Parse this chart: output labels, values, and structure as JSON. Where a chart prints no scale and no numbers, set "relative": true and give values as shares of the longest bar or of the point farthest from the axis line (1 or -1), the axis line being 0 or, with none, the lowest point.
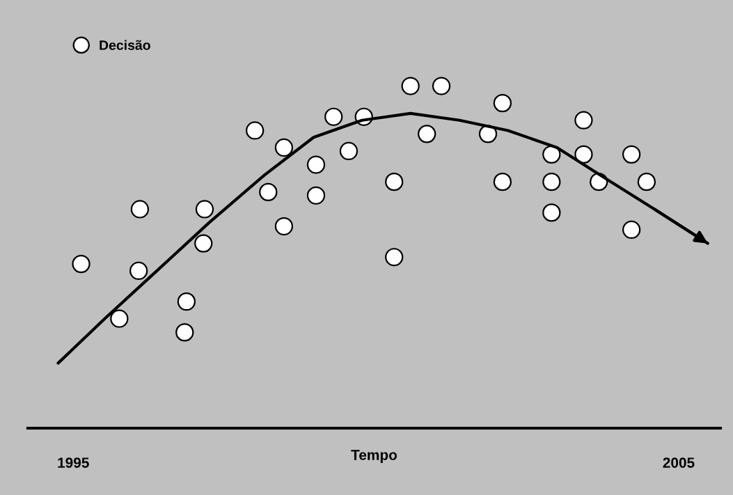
{
  "chart_data": {
    "type": "scatter",
    "relative": true,
    "xlabel": "Tempo",
    "xlim": [
      1994.25,
      2005.69
    ],
    "xticks": [
      1995,
      2005
    ],
    "grid": false,
    "legend": "top left",
    "series": [
      {
        "name": "Decisão",
        "marker": "circle",
        "color": "#ffffff",
        "x": [
          1995.13,
          1995.76,
          1996.1,
          1996.08,
          1996.84,
          1996.87,
          1997.17,
          1997.15,
          1998.0,
          1998.22,
          1998.48,
          1998.48,
          1999.01,
          1999.01,
          1999.3,
          1999.55,
          1999.8,
          2000.3,
          2000.3,
          2000.57,
          2000.84,
          2001.08,
          2001.85,
          2002.09,
          2002.09,
          2002.9,
          2002.9,
          2002.9,
          2003.43,
          2003.43,
          2003.68,
          2004.22,
          2004.22,
          2004.47
        ],
        "values": [
          0.48,
          0.32,
          0.64,
          0.46,
          0.28,
          0.37,
          0.64,
          0.54,
          0.87,
          0.69,
          0.82,
          0.59,
          0.77,
          0.68,
          0.91,
          0.81,
          0.91,
          0.72,
          0.5,
          1.0,
          0.86,
          1.0,
          0.86,
          0.95,
          0.72,
          0.8,
          0.72,
          0.63,
          0.9,
          0.8,
          0.72,
          0.8,
          0.58,
          0.72
        ]
      },
      {
        "type": "line",
        "marker": "none",
        "color": "#000000",
        "line_style": "solid",
        "x": [
          1994.75,
          1995.52,
          1996.32,
          1997.24,
          1998.16,
          1998.97,
          1999.77,
          2000.57,
          2001.38,
          2002.18,
          2002.99,
          2003.79,
          2004.6,
          2005.48
        ],
        "values": [
          0.19,
          0.32,
          0.45,
          0.6,
          0.74,
          0.85,
          0.9,
          0.92,
          0.9,
          0.87,
          0.82,
          0.73,
          0.64,
          0.54
        ]
      }
    ]
  }
}
